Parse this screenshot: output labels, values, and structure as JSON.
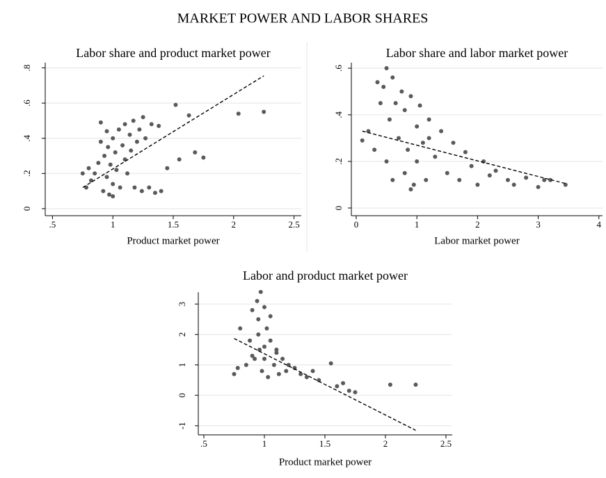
{
  "title": "MARKET POWER AND LABOR SHARES",
  "chart_data": [
    {
      "type": "scatter",
      "title": "Labor share and product market power",
      "xlabel": "Product market power",
      "color": "#5a5a5a",
      "grid": true,
      "xlim": [
        0.44,
        2.56
      ],
      "ylim": [
        -0.04,
        0.83
      ],
      "xticks": [
        {
          "value": 0.5,
          "label": ".5"
        },
        1,
        1.5,
        2,
        2.5
      ],
      "yticks": [
        0,
        {
          "value": 0.2,
          "label": ".2"
        },
        {
          "value": 0.4,
          "label": ".4"
        },
        {
          "value": 0.6,
          "label": ".6"
        },
        {
          "value": 0.8,
          "label": ".8"
        }
      ],
      "x": [
        0.75,
        0.78,
        0.8,
        0.82,
        0.85,
        0.88,
        0.9,
        0.92,
        0.93,
        0.95,
        0.96,
        0.97,
        0.98,
        1.0,
        1.0,
        1.02,
        1.03,
        1.05,
        1.06,
        1.08,
        1.1,
        1.1,
        1.12,
        1.14,
        1.15,
        1.17,
        1.18,
        1.2,
        1.22,
        1.24,
        1.25,
        1.27,
        1.3,
        1.32,
        1.35,
        1.38,
        1.4,
        1.45,
        1.52,
        1.55,
        1.63,
        1.68,
        1.75,
        2.04,
        2.25,
        0.9,
        0.95,
        1.0
      ],
      "values": [
        0.2,
        0.12,
        0.23,
        0.16,
        0.2,
        0.26,
        0.49,
        0.1,
        0.3,
        0.18,
        0.35,
        0.08,
        0.25,
        0.4,
        0.14,
        0.32,
        0.22,
        0.45,
        0.12,
        0.36,
        0.28,
        0.48,
        0.2,
        0.42,
        0.33,
        0.5,
        0.12,
        0.38,
        0.45,
        0.1,
        0.52,
        0.4,
        0.12,
        0.48,
        0.09,
        0.47,
        0.1,
        0.23,
        0.59,
        0.28,
        0.53,
        0.32,
        0.29,
        0.54,
        0.55,
        0.38,
        0.44,
        0.07
      ],
      "fit": {
        "x": [
          0.75,
          2.25
        ],
        "values": [
          0.12,
          0.755
        ],
        "color": "#000000",
        "dashed": true
      }
    },
    {
      "type": "scatter",
      "title": "Labor share and labor market power",
      "xlabel": "Labor market power",
      "color": "#5a5a5a",
      "grid": true,
      "xlim": [
        -0.08,
        4.06
      ],
      "ylim": [
        -0.033,
        0.624
      ],
      "xticks": [
        0,
        1,
        2,
        3,
        4
      ],
      "yticks": [
        0,
        {
          "value": 0.2,
          "label": ".2"
        },
        {
          "value": 0.4,
          "label": ".4"
        },
        {
          "value": 0.6,
          "label": ".6"
        }
      ],
      "x": [
        0.1,
        0.2,
        0.3,
        0.35,
        0.4,
        0.45,
        0.5,
        0.5,
        0.55,
        0.6,
        0.6,
        0.65,
        0.7,
        0.75,
        0.8,
        0.8,
        0.85,
        0.9,
        0.95,
        1.0,
        1.0,
        1.05,
        1.1,
        1.15,
        1.2,
        1.3,
        1.4,
        1.5,
        1.6,
        1.7,
        1.8,
        1.9,
        2.0,
        2.1,
        2.2,
        2.3,
        2.5,
        2.6,
        2.8,
        3.0,
        3.1,
        3.2,
        3.45,
        0.9,
        1.2
      ],
      "values": [
        0.29,
        0.33,
        0.25,
        0.54,
        0.45,
        0.52,
        0.6,
        0.2,
        0.38,
        0.56,
        0.12,
        0.45,
        0.3,
        0.5,
        0.15,
        0.42,
        0.25,
        0.48,
        0.1,
        0.35,
        0.2,
        0.44,
        0.28,
        0.12,
        0.38,
        0.22,
        0.33,
        0.15,
        0.28,
        0.12,
        0.24,
        0.18,
        0.1,
        0.2,
        0.14,
        0.16,
        0.12,
        0.1,
        0.13,
        0.09,
        0.12,
        0.12,
        0.1,
        0.08,
        0.3
      ],
      "fit": {
        "x": [
          0.1,
          3.45
        ],
        "values": [
          0.33,
          0.105
        ],
        "color": "#000000",
        "dashed": true
      }
    },
    {
      "type": "scatter",
      "title": "Labor and product market power",
      "xlabel": "Product market power",
      "color": "#5a5a5a",
      "grid": true,
      "xlim": [
        0.454,
        2.552
      ],
      "ylim": [
        -1.3,
        3.39
      ],
      "xticks": [
        {
          "value": 0.5,
          "label": ".5"
        },
        1,
        1.5,
        2,
        2.5
      ],
      "yticks": [
        -1,
        0,
        1,
        2,
        3
      ],
      "x": [
        0.75,
        0.78,
        0.8,
        0.85,
        0.88,
        0.9,
        0.92,
        0.94,
        0.95,
        0.96,
        0.97,
        0.98,
        1.0,
        1.0,
        1.02,
        1.03,
        1.05,
        1.08,
        1.1,
        1.12,
        1.15,
        1.18,
        1.2,
        1.25,
        1.3,
        1.35,
        1.4,
        1.45,
        1.55,
        1.6,
        1.65,
        1.7,
        1.75,
        2.04,
        2.25,
        0.95,
        1.0,
        1.05,
        1.1,
        0.9
      ],
      "values": [
        0.7,
        0.9,
        2.2,
        1.0,
        1.8,
        2.8,
        1.2,
        3.1,
        2.5,
        1.5,
        3.4,
        0.8,
        2.9,
        1.2,
        2.2,
        0.6,
        1.8,
        1.0,
        1.4,
        0.7,
        1.2,
        0.8,
        1.0,
        0.9,
        0.7,
        0.6,
        0.8,
        0.5,
        1.05,
        0.3,
        0.4,
        0.15,
        0.1,
        0.35,
        0.35,
        2.0,
        1.6,
        2.6,
        1.5,
        1.3
      ],
      "fit": {
        "x": [
          0.75,
          2.25
        ],
        "values": [
          1.87,
          -1.15
        ],
        "color": "#000000",
        "dashed": true
      }
    }
  ]
}
